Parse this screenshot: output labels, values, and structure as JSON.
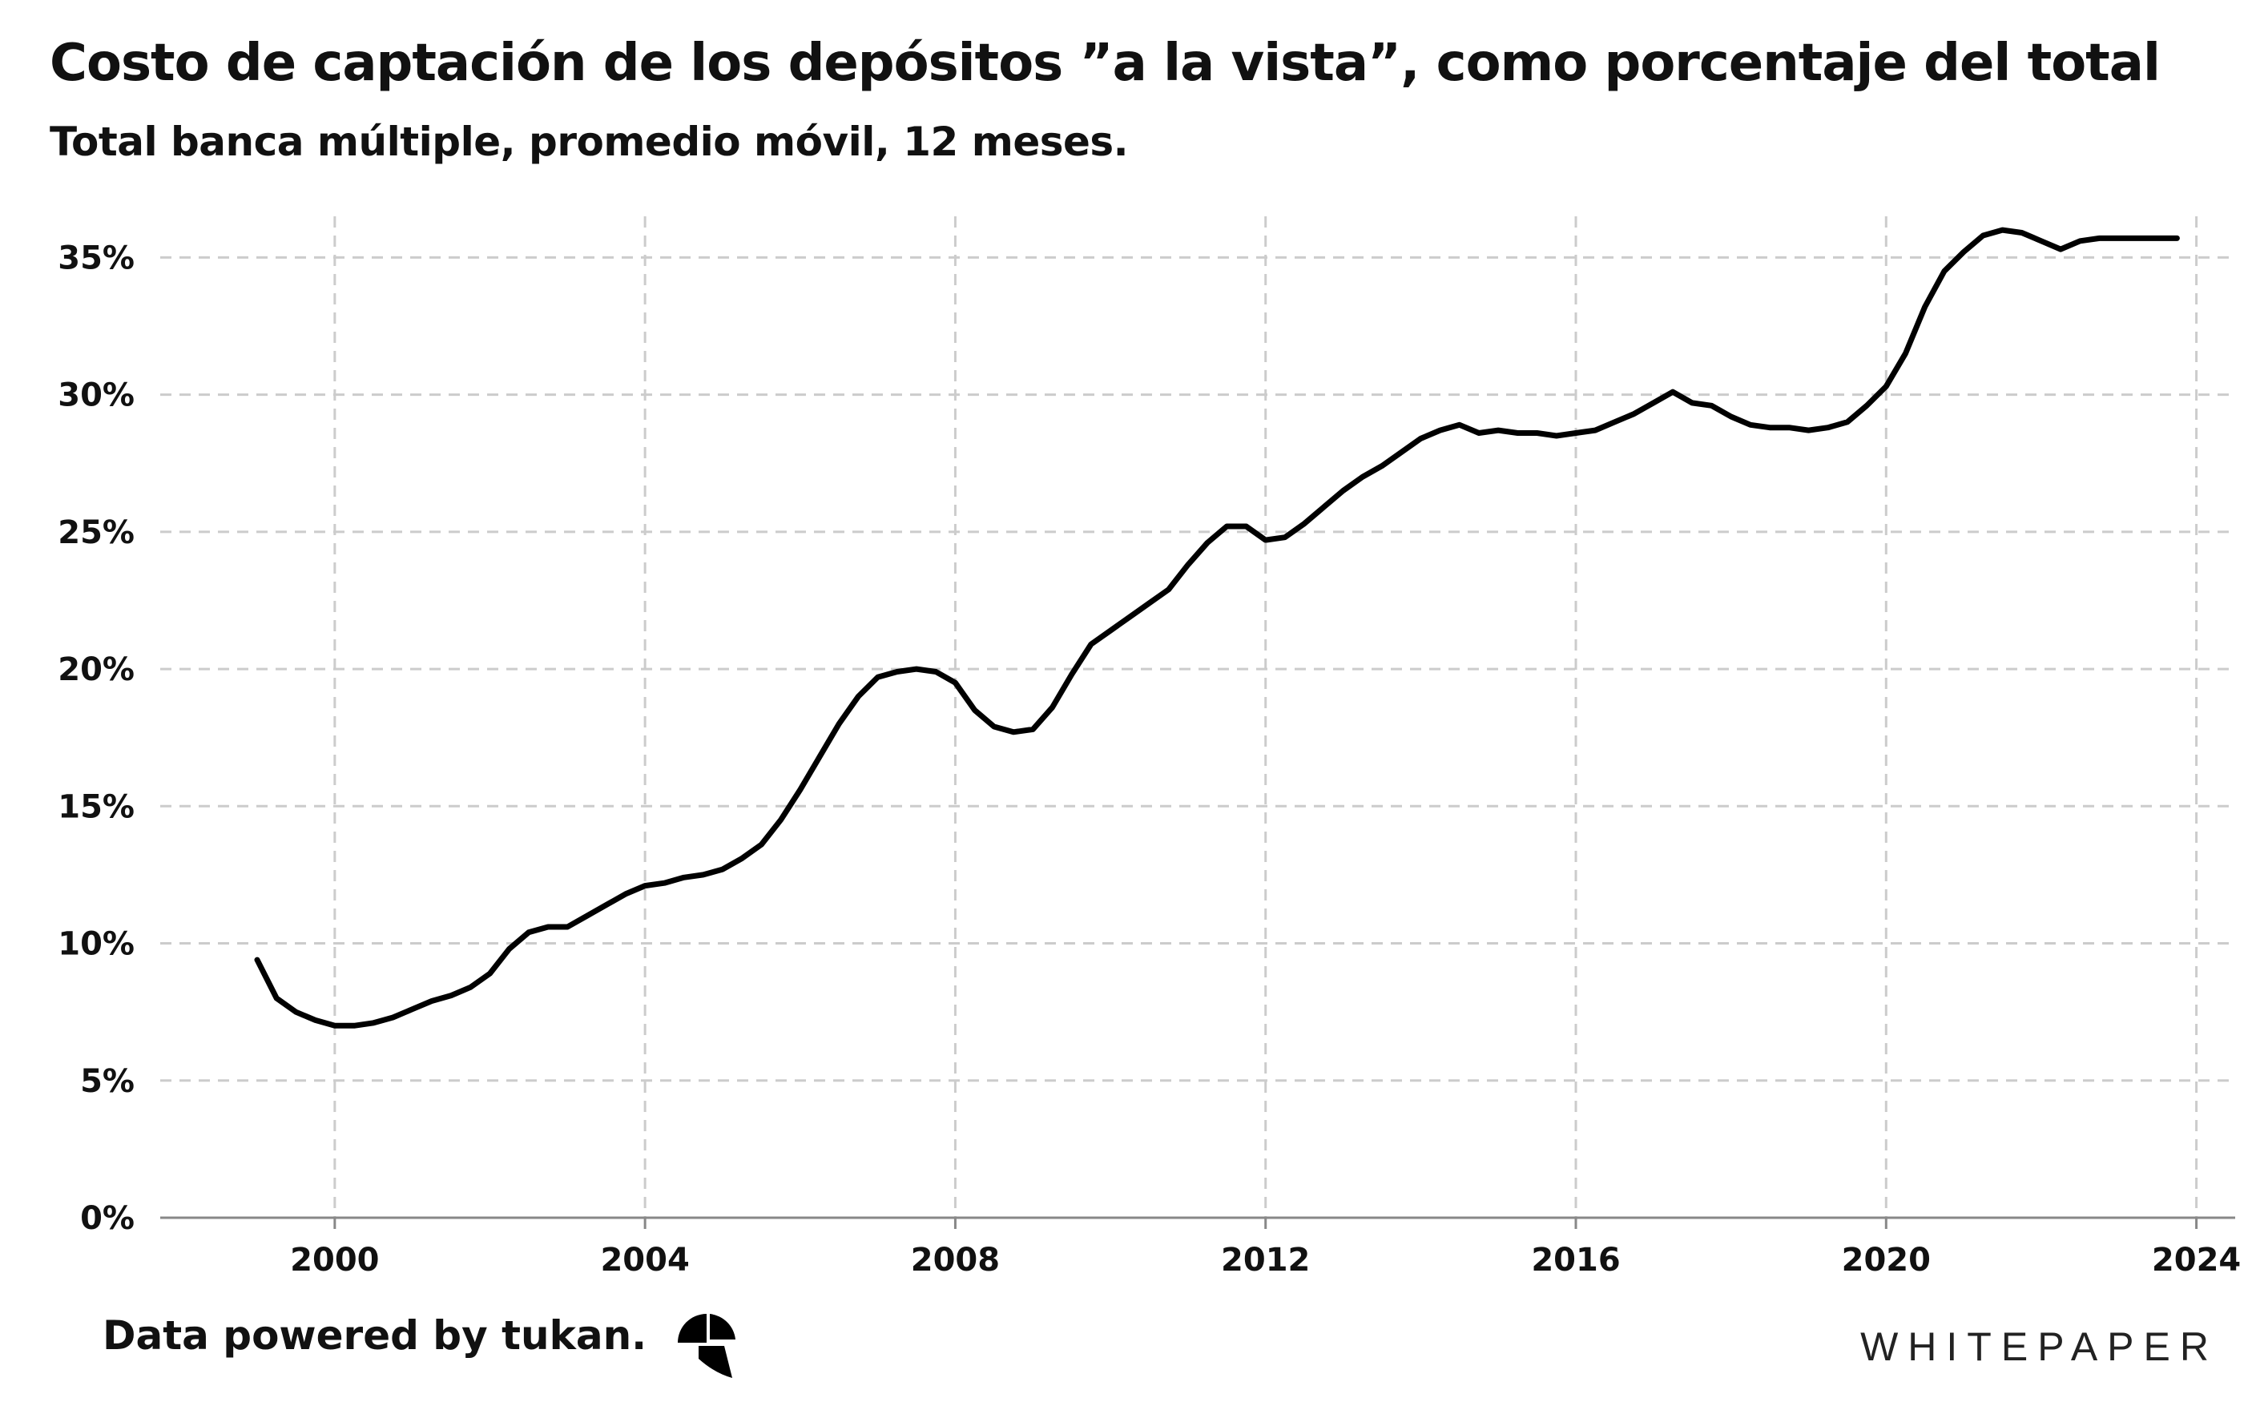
{
  "header": {
    "title": "Costo de captación de los depósitos ”a la vista”, como porcentaje del total",
    "subtitle": "Total banca múltiple, promedio móvil, 12 meses."
  },
  "footer": {
    "credit": "Data powered by tukan.",
    "brand": "WHITEPAPER",
    "logo_icon": "tukan-logo-icon"
  },
  "colors": {
    "line": "#000000",
    "grid": "#cccccc",
    "axis": "#888888"
  },
  "chart_data": {
    "type": "line",
    "title": "Costo de captación de los depósitos ”a la vista”, como porcentaje del total",
    "subtitle": "Total banca múltiple, promedio móvil, 12 meses.",
    "xlabel": "",
    "ylabel": "",
    "xlim": [
      1997.75,
      2024.5
    ],
    "ylim": [
      0,
      36.5
    ],
    "x_ticks": [
      2000,
      2004,
      2008,
      2012,
      2016,
      2020,
      2024
    ],
    "x_tick_labels": [
      "2000",
      "2004",
      "2008",
      "2012",
      "2016",
      "2020",
      "2024"
    ],
    "y_ticks": [
      0,
      5,
      10,
      15,
      20,
      25,
      30,
      35
    ],
    "y_tick_labels": [
      "0%",
      "5%",
      "10%",
      "15%",
      "20%",
      "25%",
      "30%",
      "35%"
    ],
    "grid": true,
    "legend": "none",
    "series": [
      {
        "x": [
          1999.0,
          1999.25,
          1999.5,
          1999.75,
          2000.0,
          2000.25,
          2000.5,
          2000.75,
          2001.0,
          2001.25,
          2001.5,
          2001.75,
          2002.0,
          2002.25,
          2002.5,
          2002.75,
          2003.0,
          2003.25,
          2003.5,
          2003.75,
          2004.0,
          2004.25,
          2004.5,
          2004.75,
          2005.0,
          2005.25,
          2005.5,
          2005.75,
          2006.0,
          2006.25,
          2006.5,
          2006.75,
          2007.0,
          2007.25,
          2007.5,
          2007.75,
          2008.0,
          2008.25,
          2008.5,
          2008.75,
          2009.0,
          2009.25,
          2009.5,
          2009.75,
          2010.0,
          2010.25,
          2010.5,
          2010.75,
          2011.0,
          2011.25,
          2011.5,
          2011.75,
          2012.0,
          2012.25,
          2012.5,
          2012.75,
          2013.0,
          2013.25,
          2013.5,
          2013.75,
          2014.0,
          2014.25,
          2014.5,
          2014.75,
          2015.0,
          2015.25,
          2015.5,
          2015.75,
          2016.0,
          2016.25,
          2016.5,
          2016.75,
          2017.0,
          2017.25,
          2017.5,
          2017.75,
          2018.0,
          2018.25,
          2018.5,
          2018.75,
          2019.0,
          2019.25,
          2019.5,
          2019.75,
          2020.0,
          2020.25,
          2020.5,
          2020.75,
          2021.0,
          2021.25,
          2021.5,
          2021.75,
          2022.0,
          2022.25,
          2022.5,
          2022.75,
          2023.0,
          2023.25,
          2023.5,
          2023.75
        ],
        "values": [
          9.4,
          8.0,
          7.5,
          7.2,
          7.0,
          7.0,
          7.1,
          7.3,
          7.6,
          7.9,
          8.1,
          8.4,
          8.9,
          9.8,
          10.4,
          10.6,
          10.6,
          11.0,
          11.4,
          11.8,
          12.1,
          12.2,
          12.4,
          12.5,
          12.7,
          13.1,
          13.6,
          14.5,
          15.6,
          16.8,
          18.0,
          19.0,
          19.7,
          19.9,
          20.0,
          19.9,
          19.5,
          18.5,
          17.9,
          17.7,
          17.8,
          18.6,
          19.8,
          20.9,
          21.4,
          21.9,
          22.4,
          22.9,
          23.8,
          24.6,
          25.2,
          25.2,
          24.7,
          24.8,
          25.3,
          25.9,
          26.5,
          27.0,
          27.4,
          27.9,
          28.4,
          28.7,
          28.9,
          28.6,
          28.7,
          28.6,
          28.6,
          28.5,
          28.6,
          28.7,
          29.0,
          29.3,
          29.7,
          30.1,
          29.7,
          29.6,
          29.2,
          28.9,
          28.8,
          28.8,
          28.7,
          28.8,
          29.0,
          29.6,
          30.3,
          31.5,
          33.2,
          34.5,
          35.2,
          35.8,
          36.0,
          35.9,
          35.6,
          35.3,
          35.6,
          35.7,
          35.7,
          35.7,
          35.7,
          35.7
        ]
      }
    ]
  }
}
